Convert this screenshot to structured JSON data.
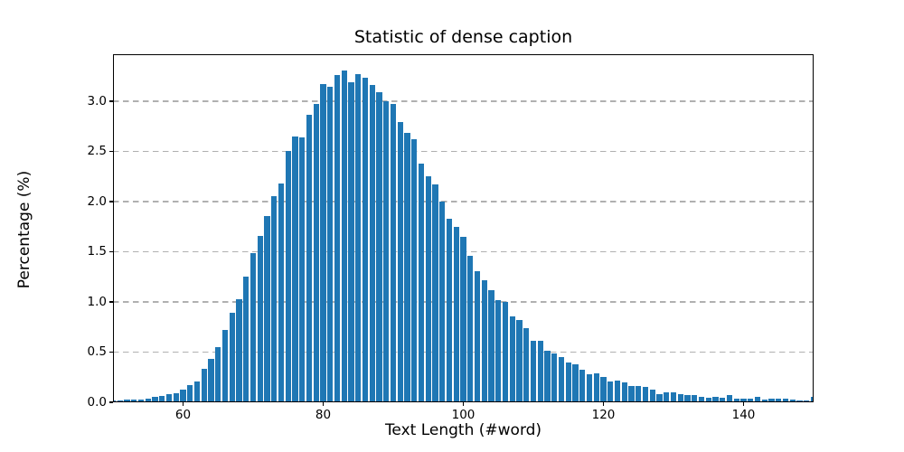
{
  "chart_data": {
    "type": "bar",
    "subtype": "histogram",
    "title": "Statistic of dense caption",
    "xlabel": "Text Length (#word)",
    "ylabel": "Percentage (%)",
    "xlim": [
      50,
      150
    ],
    "ylim": [
      0,
      3.468
    ],
    "x_ticks": [
      60,
      80,
      100,
      120,
      140
    ],
    "y_ticks": [
      0.0,
      0.5,
      1.0,
      1.5,
      2.0,
      2.5,
      3.0
    ],
    "y_tick_labels": [
      "0.0",
      "0.5",
      "1.0",
      "1.5",
      "2.0",
      "2.5",
      "3.0"
    ],
    "grid": "horizontal-dashed",
    "legend": "none",
    "bar_color": "#1f77b4",
    "grid_color": "#b0b0b0",
    "x": [
      50,
      51,
      52,
      53,
      54,
      55,
      56,
      57,
      58,
      59,
      60,
      61,
      62,
      63,
      64,
      65,
      66,
      67,
      68,
      69,
      70,
      71,
      72,
      73,
      74,
      75,
      76,
      77,
      78,
      79,
      80,
      81,
      82,
      83,
      84,
      85,
      86,
      87,
      88,
      89,
      90,
      91,
      92,
      93,
      94,
      95,
      96,
      97,
      98,
      99,
      100,
      101,
      102,
      103,
      104,
      105,
      106,
      107,
      108,
      109,
      110,
      111,
      112,
      113,
      114,
      115,
      116,
      117,
      118,
      119,
      120,
      121,
      122,
      123,
      124,
      125,
      126,
      127,
      128,
      129,
      130,
      131,
      132,
      133,
      134,
      135,
      136,
      137,
      138,
      139,
      140,
      141,
      142,
      143,
      144,
      145,
      146,
      147,
      148,
      149,
      150
    ],
    "values": [
      0.02,
      0.02,
      0.025,
      0.03,
      0.03,
      0.04,
      0.05,
      0.06,
      0.08,
      0.09,
      0.13,
      0.17,
      0.21,
      0.33,
      0.43,
      0.55,
      0.72,
      0.89,
      1.03,
      1.25,
      1.49,
      1.66,
      1.86,
      2.05,
      2.18,
      2.5,
      2.65,
      2.64,
      2.86,
      2.97,
      3.17,
      3.14,
      3.26,
      3.31,
      3.19,
      3.27,
      3.23,
      3.16,
      3.09,
      3.0,
      2.97,
      2.79,
      2.68,
      2.62,
      2.38,
      2.25,
      2.17,
      2.0,
      1.83,
      1.75,
      1.65,
      1.46,
      1.31,
      1.22,
      1.12,
      1.02,
      1.0,
      0.86,
      0.82,
      0.74,
      0.61,
      0.61,
      0.51,
      0.49,
      0.45,
      0.4,
      0.38,
      0.32,
      0.28,
      0.29,
      0.25,
      0.21,
      0.22,
      0.2,
      0.16,
      0.16,
      0.15,
      0.13,
      0.08,
      0.1,
      0.1,
      0.08,
      0.07,
      0.07,
      0.05,
      0.045,
      0.05,
      0.045,
      0.075,
      0.04,
      0.04,
      0.04,
      0.05,
      0.025,
      0.04,
      0.04,
      0.04,
      0.03,
      0.02,
      0.02,
      0.05
    ]
  }
}
